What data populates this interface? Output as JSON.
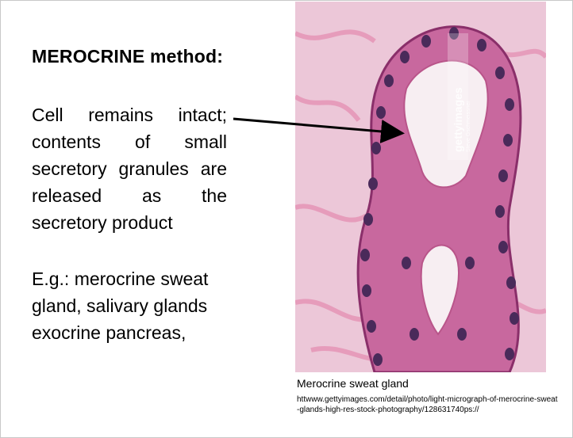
{
  "slide": {
    "heading": "MEROCRINE method:",
    "description": "Cell remains intact; contents of small secretory granules are released as the secretory product",
    "example": "E.g.: merocrine sweat gland, salivary glands exocrine pancreas,"
  },
  "figure": {
    "caption": "Merocrine sweat gland",
    "source": "httwww.gettyimages.com/detail/photo/light-micrograph-of-merocrine-sweat-glands-high-res-stock-photography/128631740ps://",
    "watermark": "gettyimages",
    "watermark_credit": "Steve Gschmeissner",
    "colors": {
      "background": "#ead0dc",
      "stroma": "#e27aa6",
      "epithelium": "#c8609a",
      "nucleus": "#4a2a5a",
      "lumen": "#f7eef2"
    }
  }
}
